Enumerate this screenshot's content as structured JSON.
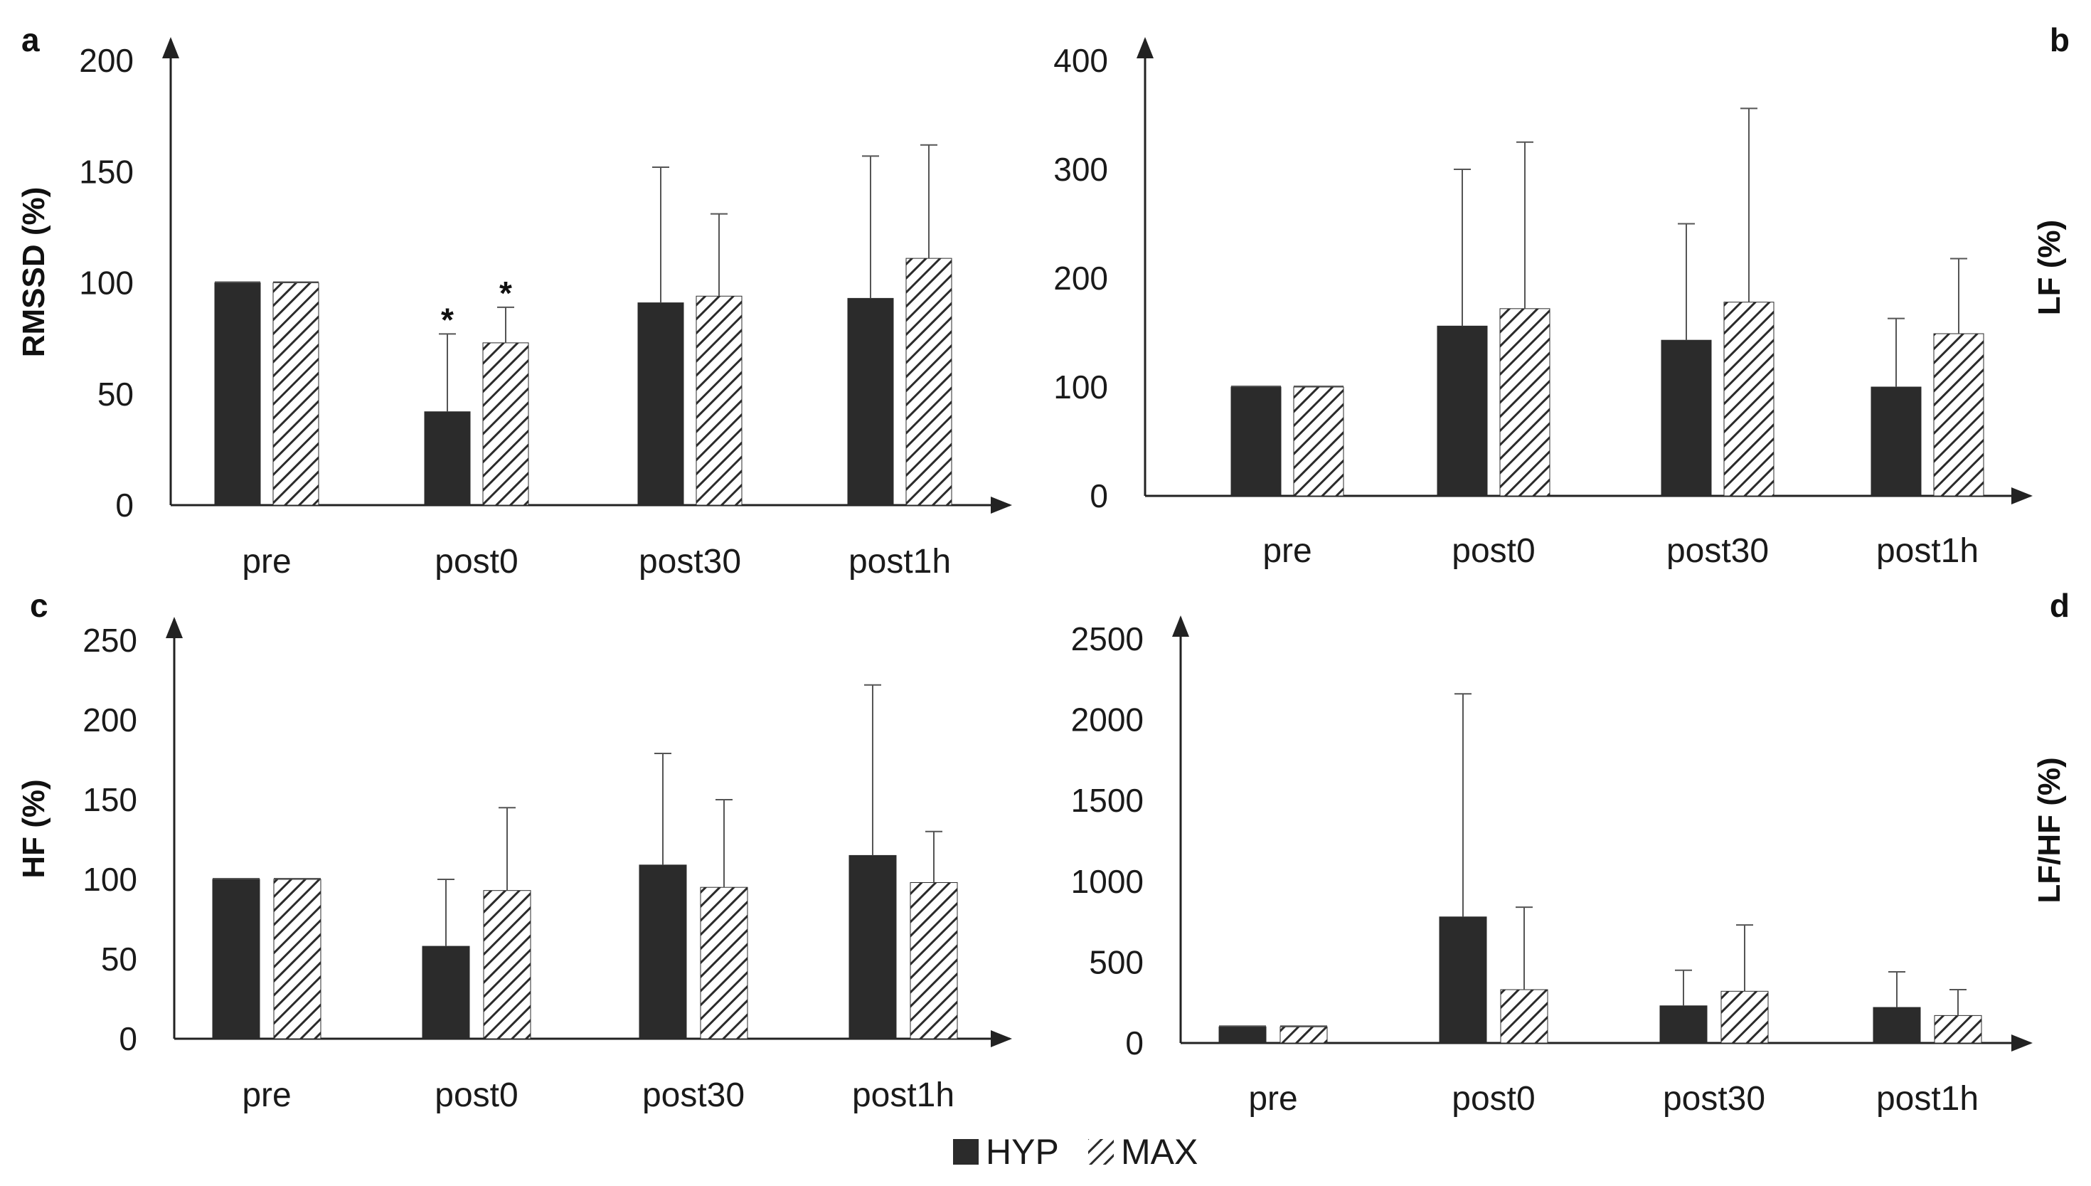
{
  "legend": {
    "hyp_label": "HYP",
    "max_label": "MAX"
  },
  "colors": {
    "hyp": "#2b2b2b",
    "max_stripe": "#2b2b2b",
    "axis": "#222222"
  },
  "chart_data": [
    {
      "id": "a",
      "panel_label": "a",
      "type": "bar",
      "ylabel": "RMSSD (%)",
      "ylim": [
        0,
        200
      ],
      "yticks": [
        0,
        50,
        100,
        150,
        200
      ],
      "categories": [
        "pre",
        "post0",
        "post30",
        "post1h"
      ],
      "series": [
        {
          "name": "HYP",
          "values": [
            100,
            42,
            91,
            93
          ],
          "errors": [
            0,
            35,
            61,
            64
          ]
        },
        {
          "name": "MAX",
          "values": [
            100,
            73,
            94,
            111
          ],
          "errors": [
            0,
            16,
            37,
            51
          ]
        }
      ],
      "annotations": [
        {
          "text": "*",
          "category": "post0",
          "series": "HYP"
        },
        {
          "text": "*",
          "category": "post0",
          "series": "MAX"
        }
      ]
    },
    {
      "id": "b",
      "panel_label": "b",
      "type": "bar",
      "ylabel": "LF (%)",
      "ylim": [
        0,
        400
      ],
      "yticks": [
        0,
        100,
        200,
        300,
        400
      ],
      "categories": [
        "pre",
        "post0",
        "post30",
        "post1h"
      ],
      "series": [
        {
          "name": "HYP",
          "values": [
            100,
            156,
            143,
            100
          ],
          "errors": [
            0,
            144,
            107,
            63
          ]
        },
        {
          "name": "MAX",
          "values": [
            100,
            172,
            178,
            149
          ],
          "errors": [
            0,
            153,
            178,
            69
          ]
        }
      ],
      "annotations": []
    },
    {
      "id": "c",
      "panel_label": "c",
      "type": "bar",
      "ylabel": "HF (%)",
      "ylim": [
        0,
        250
      ],
      "yticks": [
        0,
        50,
        100,
        150,
        200,
        250
      ],
      "categories": [
        "pre",
        "post0",
        "post30",
        "post1h"
      ],
      "series": [
        {
          "name": "HYP",
          "values": [
            100,
            58,
            109,
            115
          ],
          "errors": [
            0,
            42,
            70,
            107
          ]
        },
        {
          "name": "MAX",
          "values": [
            100,
            93,
            95,
            98
          ],
          "errors": [
            0,
            52,
            55,
            32
          ]
        }
      ],
      "annotations": []
    },
    {
      "id": "d",
      "panel_label": "d",
      "type": "bar",
      "ylabel": "LF/HF (%)",
      "ylim": [
        0,
        2500
      ],
      "yticks": [
        0,
        500,
        1000,
        1500,
        2000,
        2500
      ],
      "categories": [
        "pre",
        "post0",
        "post30",
        "post1h"
      ],
      "series": [
        {
          "name": "HYP",
          "values": [
            100,
            780,
            230,
            220
          ],
          "errors": [
            0,
            1380,
            220,
            220
          ]
        },
        {
          "name": "MAX",
          "values": [
            100,
            330,
            320,
            170
          ],
          "errors": [
            0,
            510,
            410,
            160
          ]
        }
      ],
      "annotations": []
    }
  ]
}
